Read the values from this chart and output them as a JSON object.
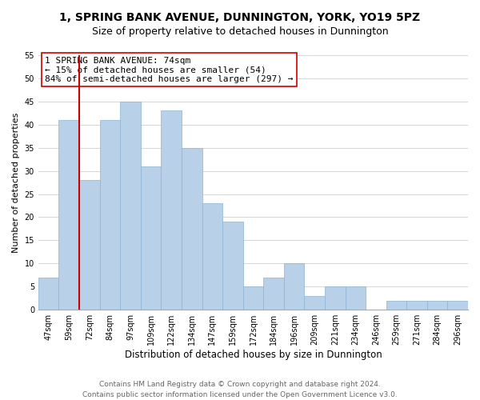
{
  "title": "1, SPRING BANK AVENUE, DUNNINGTON, YORK, YO19 5PZ",
  "subtitle": "Size of property relative to detached houses in Dunnington",
  "xlabel": "Distribution of detached houses by size in Dunnington",
  "ylabel": "Number of detached properties",
  "bar_labels": [
    "47sqm",
    "59sqm",
    "72sqm",
    "84sqm",
    "97sqm",
    "109sqm",
    "122sqm",
    "134sqm",
    "147sqm",
    "159sqm",
    "172sqm",
    "184sqm",
    "196sqm",
    "209sqm",
    "221sqm",
    "234sqm",
    "246sqm",
    "259sqm",
    "271sqm",
    "284sqm",
    "296sqm"
  ],
  "bar_values": [
    7,
    41,
    28,
    41,
    45,
    31,
    43,
    35,
    23,
    19,
    5,
    7,
    10,
    3,
    5,
    5,
    0,
    2,
    2,
    2,
    2
  ],
  "bar_color": "#b8d0e8",
  "bar_edge_color": "#8ab4d4",
  "highlight_bar_index": 2,
  "highlight_line_color": "#cc0000",
  "ylim": [
    0,
    55
  ],
  "yticks": [
    0,
    5,
    10,
    15,
    20,
    25,
    30,
    35,
    40,
    45,
    50,
    55
  ],
  "annotation_line1": "1 SPRING BANK AVENUE: 74sqm",
  "annotation_line2": "← 15% of detached houses are smaller (54)",
  "annotation_line3": "84% of semi-detached houses are larger (297) →",
  "footer_line1": "Contains HM Land Registry data © Crown copyright and database right 2024.",
  "footer_line2": "Contains public sector information licensed under the Open Government Licence v3.0.",
  "bg_color": "#ffffff",
  "grid_color": "#d0d0d0",
  "title_fontsize": 10,
  "subtitle_fontsize": 9,
  "xlabel_fontsize": 8.5,
  "ylabel_fontsize": 8,
  "tick_fontsize": 7,
  "annotation_fontsize": 8,
  "footer_fontsize": 6.5
}
